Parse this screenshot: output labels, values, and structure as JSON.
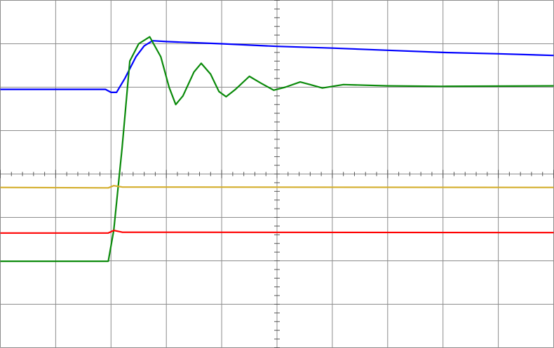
{
  "chart_data": {
    "type": "line",
    "xlim": [
      0,
      10
    ],
    "ylim": [
      -4,
      4
    ],
    "xticks": [
      0,
      1,
      2,
      3,
      4,
      5,
      6,
      7,
      8,
      9,
      10
    ],
    "yticks": [
      -4,
      -3,
      -2,
      -1,
      0,
      1,
      2,
      3,
      4
    ],
    "grid": true,
    "series": [
      {
        "color": "#0000ff",
        "x": [
          0,
          1.9,
          2.0,
          2.1,
          2.25,
          2.45,
          2.6,
          2.75,
          3,
          4,
          5,
          6,
          7,
          8,
          9,
          10
        ],
        "values": [
          1.95,
          1.95,
          1.88,
          1.88,
          2.2,
          2.7,
          2.95,
          3.07,
          3.05,
          3.0,
          2.94,
          2.9,
          2.85,
          2.8,
          2.77,
          2.73
        ]
      },
      {
        "color": "#0a8a0a",
        "x": [
          0,
          1.95,
          2.05,
          2.2,
          2.34,
          2.5,
          2.7,
          2.9,
          3.05,
          3.17,
          3.3,
          3.5,
          3.63,
          3.8,
          3.95,
          4.08,
          4.25,
          4.5,
          4.7,
          4.94,
          5.15,
          5.42,
          5.6,
          5.82,
          6.2,
          7,
          8,
          10
        ],
        "values": [
          -2.01,
          -2.01,
          -1.3,
          0.6,
          2.6,
          3.0,
          3.16,
          2.7,
          2.0,
          1.6,
          1.8,
          2.35,
          2.55,
          2.3,
          1.9,
          1.78,
          1.95,
          2.25,
          2.1,
          1.93,
          2.0,
          2.12,
          2.06,
          1.98,
          2.06,
          2.03,
          2.02,
          2.03
        ]
      },
      {
        "color": "#d4ae2c",
        "x": [
          0,
          1.95,
          2.05,
          2.2,
          10
        ],
        "values": [
          -0.31,
          -0.32,
          -0.27,
          -0.3,
          -0.31
        ]
      },
      {
        "color": "#ff0000",
        "x": [
          0,
          1.95,
          2.05,
          2.2,
          10
        ],
        "values": [
          -1.36,
          -1.36,
          -1.3,
          -1.34,
          -1.35
        ]
      }
    ]
  }
}
